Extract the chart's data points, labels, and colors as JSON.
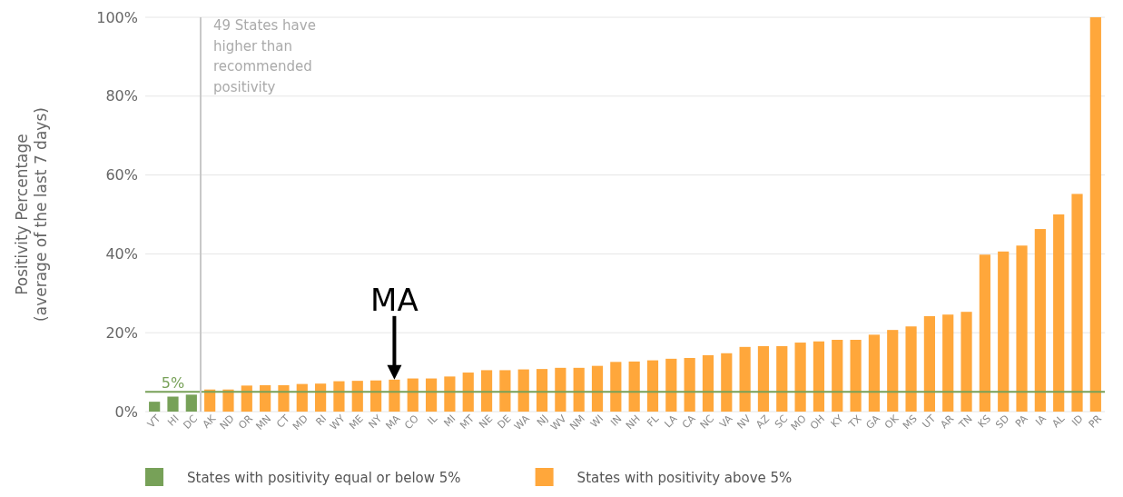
{
  "chart_data": {
    "type": "bar",
    "ylabel": "Positivity Percentage\n(average of the last 7 days)",
    "categories": [
      "VT",
      "HI",
      "DC",
      "AK",
      "ND",
      "OR",
      "MN",
      "CT",
      "MD",
      "RI",
      "WY",
      "ME",
      "NY",
      "MA",
      "CO",
      "IL",
      "MI",
      "MT",
      "NE",
      "DE",
      "WA",
      "NJ",
      "WV",
      "NM",
      "WI",
      "IN",
      "NH",
      "FL",
      "LA",
      "CA",
      "NC",
      "VA",
      "NV",
      "AZ",
      "SC",
      "MO",
      "OH",
      "KY",
      "TX",
      "GA",
      "OK",
      "MS",
      "UT",
      "AR",
      "TN",
      "KS",
      "SD",
      "PA",
      "IA",
      "AL",
      "ID",
      "PR"
    ],
    "series": [
      {
        "name": "States with positivity equal or below 5%",
        "color": "#77a158",
        "values": [
          2.5,
          3.8,
          4.3,
          null,
          null,
          null,
          null,
          null,
          null,
          null,
          null,
          null,
          null,
          null,
          null,
          null,
          null,
          null,
          null,
          null,
          null,
          null,
          null,
          null,
          null,
          null,
          null,
          null,
          null,
          null,
          null,
          null,
          null,
          null,
          null,
          null,
          null,
          null,
          null,
          null,
          null,
          null,
          null,
          null,
          null,
          null,
          null,
          null,
          null,
          null,
          null,
          null
        ]
      },
      {
        "name": "States with positivity above 5%",
        "color": "#ffa73b",
        "values": [
          null,
          null,
          null,
          5.6,
          5.6,
          6.6,
          6.7,
          6.7,
          7.0,
          7.1,
          7.7,
          7.8,
          7.9,
          8.1,
          8.4,
          8.4,
          8.9,
          9.9,
          10.5,
          10.5,
          10.7,
          10.8,
          11.1,
          11.1,
          11.6,
          12.6,
          12.7,
          13.0,
          13.4,
          13.6,
          14.3,
          14.8,
          16.4,
          16.6,
          16.6,
          17.5,
          17.8,
          18.2,
          18.2,
          19.5,
          20.7,
          21.6,
          24.2,
          24.6,
          25.3,
          39.8,
          40.6,
          42.1,
          46.3,
          50.0,
          55.2,
          100
        ]
      }
    ],
    "ylim": [
      0,
      100
    ],
    "yticks": [
      {
        "value": 0,
        "label": "0%"
      },
      {
        "value": 20,
        "label": "20%"
      },
      {
        "value": 40,
        "label": "40%"
      },
      {
        "value": 60,
        "label": "60%"
      },
      {
        "value": 80,
        "label": "80%"
      },
      {
        "value": 100,
        "label": "100%"
      }
    ],
    "grid": "y",
    "legend": "bottom",
    "ref_lines": [
      {
        "axis": "y",
        "value": 5,
        "label": "5%",
        "color": "#77a158"
      },
      {
        "axis": "x",
        "value": "AK",
        "label": "49 States have higher than recommended positivity",
        "color": "#c8c8c8"
      }
    ],
    "annotations": [
      {
        "text": "MA",
        "x": "MA",
        "y": 8.1
      }
    ]
  }
}
